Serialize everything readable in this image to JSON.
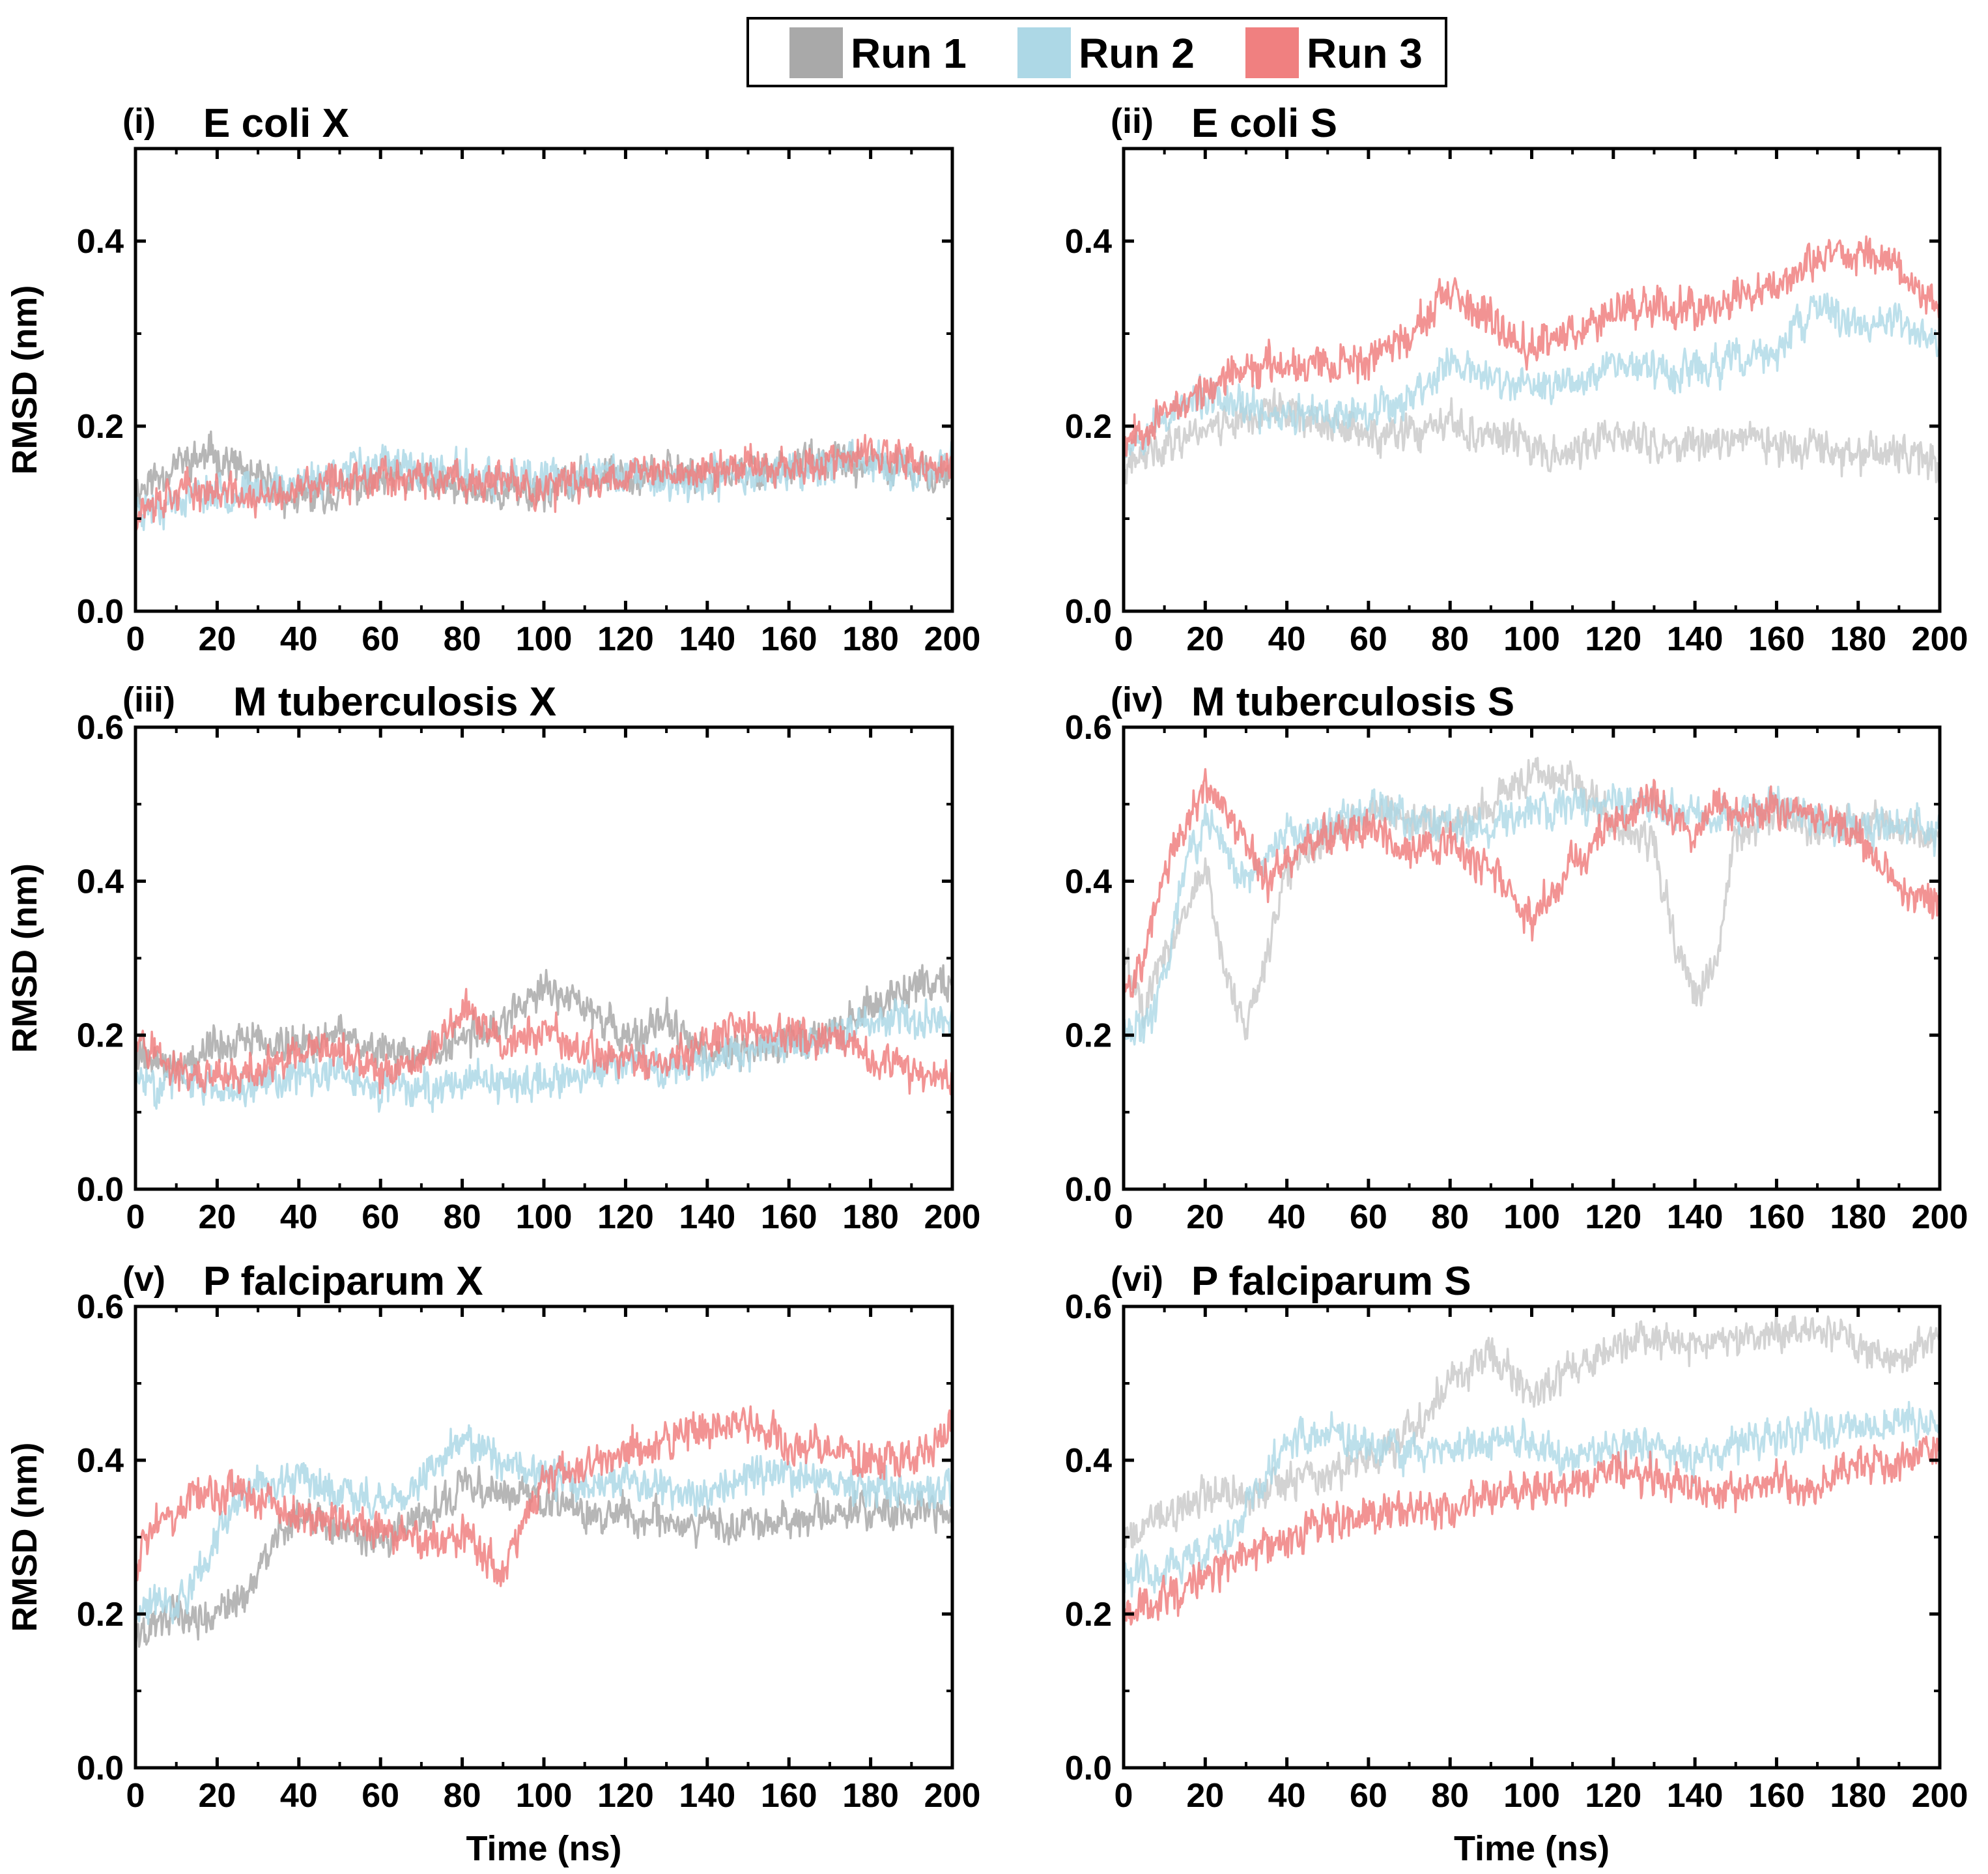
{
  "legend": {
    "entries": [
      {
        "label": "Run 1",
        "color": "#a9a9a9"
      },
      {
        "label": "Run 2",
        "color": "#add8e6"
      },
      {
        "label": "Run 3",
        "color": "#f08080"
      }
    ]
  },
  "chart_data": [
    {
      "type": "line",
      "panel": "(i)",
      "title": "E coli X",
      "xlabel": "",
      "ylabel": "RMSD (nm)",
      "xlim": [
        0,
        200
      ],
      "ylim": [
        0,
        0.5
      ],
      "xticks": [
        0,
        20,
        40,
        60,
        80,
        100,
        120,
        140,
        160,
        180,
        200
      ],
      "yticks": [
        0.0,
        0.2,
        0.4
      ],
      "ytick_labels": [
        "0.0",
        "0.2",
        "0.4"
      ],
      "x": [
        0,
        10,
        20,
        30,
        40,
        50,
        60,
        70,
        80,
        90,
        100,
        110,
        120,
        130,
        140,
        150,
        160,
        170,
        180,
        190,
        200
      ],
      "series": [
        {
          "name": "Run 1",
          "color": "#a9a9a9",
          "alpha": 0.85,
          "values": [
            0.13,
            0.16,
            0.17,
            0.14,
            0.12,
            0.13,
            0.14,
            0.14,
            0.13,
            0.13,
            0.13,
            0.14,
            0.15,
            0.15,
            0.15,
            0.15,
            0.16,
            0.16,
            0.16,
            0.15,
            0.15
          ]
        },
        {
          "name": "Run 2",
          "color": "#add8e6",
          "alpha": 0.85,
          "values": [
            0.11,
            0.12,
            0.13,
            0.13,
            0.14,
            0.15,
            0.16,
            0.15,
            0.15,
            0.14,
            0.14,
            0.15,
            0.15,
            0.14,
            0.14,
            0.15,
            0.15,
            0.16,
            0.16,
            0.15,
            0.16
          ]
        },
        {
          "name": "Run 3",
          "color": "#f08080",
          "alpha": 0.85,
          "values": [
            0.11,
            0.13,
            0.13,
            0.12,
            0.13,
            0.14,
            0.15,
            0.14,
            0.14,
            0.14,
            0.13,
            0.14,
            0.15,
            0.15,
            0.15,
            0.16,
            0.16,
            0.16,
            0.17,
            0.16,
            0.15
          ]
        }
      ]
    },
    {
      "type": "line",
      "panel": "(ii)",
      "title": "E coli S",
      "xlabel": "",
      "ylabel": "",
      "xlim": [
        0,
        200
      ],
      "ylim": [
        0,
        0.5
      ],
      "xticks": [
        0,
        20,
        40,
        60,
        80,
        100,
        120,
        140,
        160,
        180,
        200
      ],
      "yticks": [
        0.0,
        0.2,
        0.4
      ],
      "ytick_labels": [
        "0.0",
        "0.2",
        "0.4"
      ],
      "x": [
        0,
        10,
        20,
        30,
        40,
        50,
        60,
        70,
        80,
        90,
        100,
        110,
        120,
        130,
        140,
        150,
        160,
        170,
        180,
        190,
        200
      ],
      "series": [
        {
          "name": "Run 1",
          "color": "#c8c8c8",
          "alpha": 0.8,
          "values": [
            0.15,
            0.18,
            0.2,
            0.21,
            0.22,
            0.2,
            0.19,
            0.19,
            0.2,
            0.19,
            0.18,
            0.17,
            0.19,
            0.18,
            0.18,
            0.19,
            0.18,
            0.17,
            0.17,
            0.17,
            0.16
          ]
        },
        {
          "name": "Run 2",
          "color": "#add8e6",
          "alpha": 0.8,
          "values": [
            0.18,
            0.21,
            0.23,
            0.22,
            0.21,
            0.21,
            0.22,
            0.23,
            0.27,
            0.25,
            0.24,
            0.25,
            0.27,
            0.26,
            0.26,
            0.27,
            0.28,
            0.33,
            0.31,
            0.31,
            0.29
          ]
        },
        {
          "name": "Run 3",
          "color": "#f08080",
          "alpha": 0.85,
          "values": [
            0.19,
            0.21,
            0.24,
            0.26,
            0.27,
            0.27,
            0.27,
            0.3,
            0.34,
            0.31,
            0.29,
            0.3,
            0.33,
            0.33,
            0.33,
            0.34,
            0.35,
            0.38,
            0.39,
            0.37,
            0.33
          ]
        }
      ]
    },
    {
      "type": "line",
      "panel": "(iii)",
      "title": "M tuberculosis X",
      "xlabel": "",
      "ylabel": "RMSD (nm)",
      "xlim": [
        0,
        200
      ],
      "ylim": [
        0,
        0.6
      ],
      "xticks": [
        0,
        20,
        40,
        60,
        80,
        100,
        120,
        140,
        160,
        180,
        200
      ],
      "yticks": [
        0.0,
        0.2,
        0.4,
        0.6
      ],
      "ytick_labels": [
        "0.0",
        "0.2",
        "0.4",
        "0.6"
      ],
      "x": [
        0,
        10,
        20,
        30,
        40,
        50,
        60,
        70,
        80,
        90,
        100,
        110,
        120,
        130,
        140,
        150,
        160,
        170,
        180,
        190,
        200
      ],
      "series": [
        {
          "name": "Run 1",
          "color": "#a9a9a9",
          "alpha": 0.85,
          "values": [
            0.18,
            0.16,
            0.19,
            0.19,
            0.19,
            0.2,
            0.18,
            0.17,
            0.19,
            0.22,
            0.26,
            0.24,
            0.19,
            0.22,
            0.17,
            0.18,
            0.19,
            0.2,
            0.24,
            0.26,
            0.27
          ]
        },
        {
          "name": "Run 2",
          "color": "#add8e6",
          "alpha": 0.85,
          "values": [
            0.14,
            0.14,
            0.13,
            0.14,
            0.15,
            0.15,
            0.13,
            0.13,
            0.14,
            0.13,
            0.14,
            0.15,
            0.16,
            0.16,
            0.17,
            0.18,
            0.19,
            0.2,
            0.22,
            0.22,
            0.22
          ]
        },
        {
          "name": "Run 3",
          "color": "#f08080",
          "alpha": 0.85,
          "values": [
            0.21,
            0.15,
            0.14,
            0.15,
            0.17,
            0.18,
            0.15,
            0.17,
            0.23,
            0.19,
            0.2,
            0.18,
            0.17,
            0.16,
            0.19,
            0.21,
            0.2,
            0.19,
            0.17,
            0.15,
            0.15
          ]
        }
      ]
    },
    {
      "type": "line",
      "panel": "(iv)",
      "title": "M tuberculosis S",
      "xlabel": "",
      "ylabel": "",
      "xlim": [
        0,
        200
      ],
      "ylim": [
        0,
        0.6
      ],
      "xticks": [
        0,
        20,
        40,
        60,
        80,
        100,
        120,
        140,
        160,
        180,
        200
      ],
      "yticks": [
        0.0,
        0.2,
        0.4,
        0.6
      ],
      "ytick_labels": [
        "0.0",
        "0.2",
        "0.4",
        "0.6"
      ],
      "x": [
        0,
        5,
        10,
        15,
        20,
        25,
        30,
        35,
        40,
        50,
        60,
        70,
        80,
        90,
        100,
        110,
        120,
        130,
        135,
        140,
        145,
        150,
        160,
        170,
        180,
        190,
        200
      ],
      "series": [
        {
          "name": "Run 1",
          "color": "#c8c8c8",
          "alpha": 0.8,
          "values": [
            0.3,
            0.24,
            0.3,
            0.36,
            0.42,
            0.28,
            0.21,
            0.3,
            0.42,
            0.46,
            0.49,
            0.48,
            0.47,
            0.5,
            0.54,
            0.53,
            0.48,
            0.45,
            0.32,
            0.25,
            0.3,
            0.46,
            0.49,
            0.47,
            0.48,
            0.47,
            0.46
          ]
        },
        {
          "name": "Run 2",
          "color": "#add8e6",
          "alpha": 0.8,
          "values": [
            0.22,
            0.2,
            0.28,
            0.42,
            0.48,
            0.44,
            0.4,
            0.43,
            0.46,
            0.47,
            0.5,
            0.48,
            0.47,
            0.47,
            0.49,
            0.5,
            0.5,
            0.5,
            0.49,
            0.48,
            0.49,
            0.49,
            0.5,
            0.48,
            0.47,
            0.47,
            0.47
          ]
        },
        {
          "name": "Run 3",
          "color": "#f08080",
          "alpha": 0.85,
          "values": [
            0.26,
            0.3,
            0.42,
            0.47,
            0.52,
            0.5,
            0.44,
            0.4,
            0.43,
            0.46,
            0.47,
            0.44,
            0.45,
            0.41,
            0.35,
            0.42,
            0.47,
            0.51,
            0.48,
            0.46,
            0.5,
            0.49,
            0.5,
            0.48,
            0.46,
            0.39,
            0.37
          ]
        }
      ]
    },
    {
      "type": "line",
      "panel": "(v)",
      "title": "P falciparum X",
      "xlabel": "Time (ns)",
      "ylabel": "RMSD (nm)",
      "xlim": [
        0,
        200
      ],
      "ylim": [
        0,
        0.6
      ],
      "xticks": [
        0,
        20,
        40,
        60,
        80,
        100,
        120,
        140,
        160,
        180,
        200
      ],
      "yticks": [
        0.0,
        0.2,
        0.4,
        0.6
      ],
      "ytick_labels": [
        "0.0",
        "0.2",
        "0.4",
        "0.6"
      ],
      "x": [
        0,
        5,
        10,
        15,
        20,
        25,
        30,
        35,
        40,
        50,
        60,
        70,
        80,
        90,
        100,
        110,
        120,
        130,
        140,
        150,
        160,
        170,
        180,
        190,
        200
      ],
      "series": [
        {
          "name": "Run 1",
          "color": "#a9a9a9",
          "alpha": 0.85,
          "values": [
            0.17,
            0.19,
            0.2,
            0.19,
            0.2,
            0.22,
            0.25,
            0.3,
            0.33,
            0.31,
            0.3,
            0.32,
            0.37,
            0.36,
            0.35,
            0.33,
            0.33,
            0.32,
            0.31,
            0.32,
            0.32,
            0.33,
            0.33,
            0.33,
            0.33
          ]
        },
        {
          "name": "Run 2",
          "color": "#add8e6",
          "alpha": 0.85,
          "values": [
            0.2,
            0.22,
            0.21,
            0.25,
            0.3,
            0.35,
            0.38,
            0.36,
            0.38,
            0.35,
            0.34,
            0.37,
            0.43,
            0.4,
            0.38,
            0.37,
            0.37,
            0.36,
            0.36,
            0.38,
            0.38,
            0.37,
            0.36,
            0.36,
            0.37
          ]
        },
        {
          "name": "Run 3",
          "color": "#f08080",
          "alpha": 0.85,
          "values": [
            0.27,
            0.33,
            0.32,
            0.36,
            0.35,
            0.37,
            0.35,
            0.34,
            0.33,
            0.32,
            0.31,
            0.3,
            0.3,
            0.26,
            0.38,
            0.39,
            0.41,
            0.43,
            0.44,
            0.45,
            0.42,
            0.41,
            0.4,
            0.4,
            0.45
          ]
        }
      ]
    },
    {
      "type": "line",
      "panel": "(vi)",
      "title": "P falciparum S",
      "xlabel": "Time (ns)",
      "ylabel": "",
      "xlim": [
        0,
        200
      ],
      "ylim": [
        0,
        0.6
      ],
      "xticks": [
        0,
        20,
        40,
        60,
        80,
        100,
        120,
        140,
        160,
        180,
        200
      ],
      "yticks": [
        0.0,
        0.2,
        0.4,
        0.6
      ],
      "ytick_labels": [
        "0.0",
        "0.2",
        "0.4",
        "0.6"
      ],
      "x": [
        0,
        10,
        20,
        30,
        40,
        50,
        60,
        70,
        80,
        90,
        100,
        110,
        120,
        130,
        140,
        150,
        160,
        170,
        180,
        190,
        200
      ],
      "series": [
        {
          "name": "Run 1",
          "color": "#c8c8c8",
          "alpha": 0.8,
          "values": [
            0.3,
            0.33,
            0.36,
            0.35,
            0.37,
            0.38,
            0.4,
            0.43,
            0.5,
            0.54,
            0.48,
            0.52,
            0.55,
            0.56,
            0.55,
            0.56,
            0.56,
            0.57,
            0.55,
            0.53,
            0.56
          ]
        },
        {
          "name": "Run 2",
          "color": "#add8e6",
          "alpha": 0.8,
          "values": [
            0.25,
            0.26,
            0.28,
            0.33,
            0.42,
            0.44,
            0.42,
            0.41,
            0.41,
            0.43,
            0.42,
            0.4,
            0.42,
            0.41,
            0.4,
            0.42,
            0.43,
            0.44,
            0.44,
            0.45,
            0.45
          ]
        },
        {
          "name": "Run 3",
          "color": "#f08080",
          "alpha": 0.85,
          "values": [
            0.2,
            0.22,
            0.25,
            0.28,
            0.3,
            0.32,
            0.33,
            0.34,
            0.33,
            0.35,
            0.36,
            0.37,
            0.39,
            0.38,
            0.36,
            0.36,
            0.37,
            0.37,
            0.39,
            0.4,
            0.41
          ]
        }
      ]
    }
  ]
}
